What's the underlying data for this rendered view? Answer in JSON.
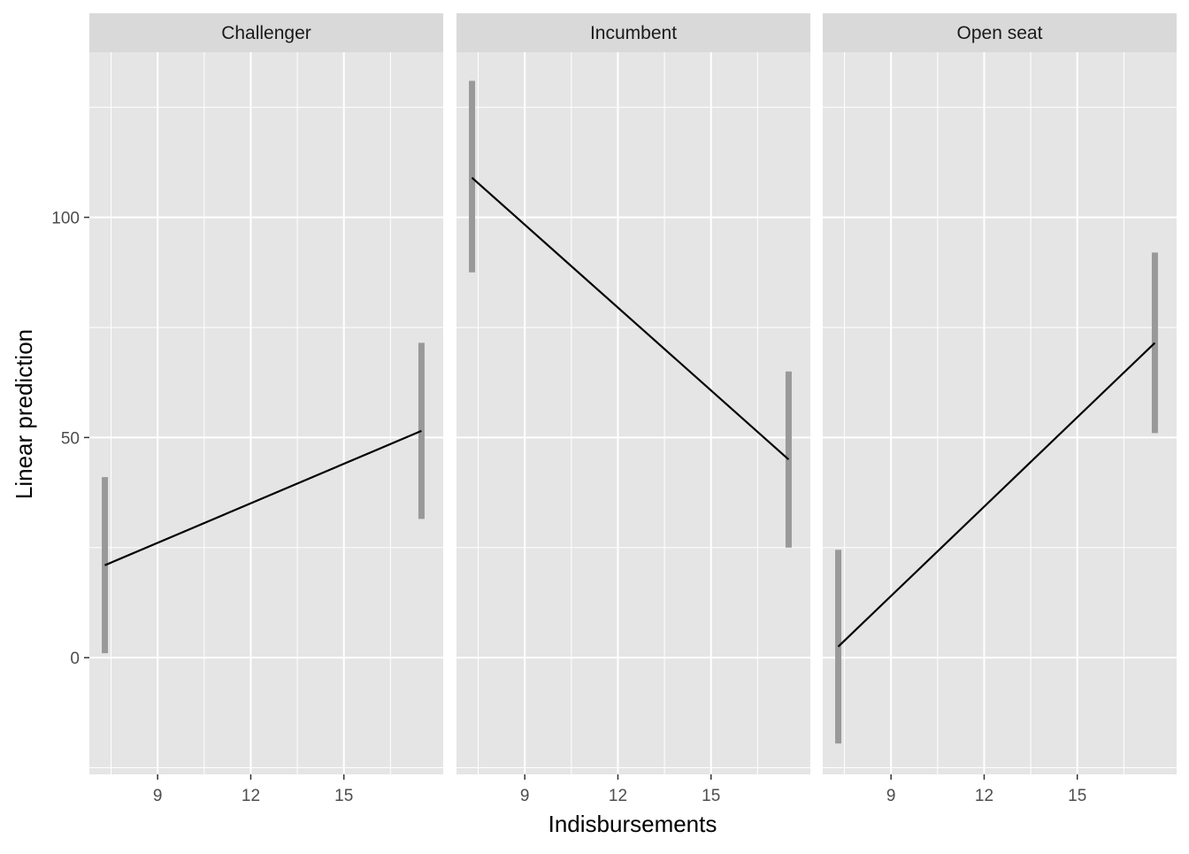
{
  "chart_data": {
    "type": "line",
    "facet_by": "panel",
    "xlabel": "Indisbursements",
    "ylabel": "Linear prediction",
    "xlim": [
      6.8,
      18.2
    ],
    "ylim": [
      -26.5,
      137.5
    ],
    "x_ticks": [
      9,
      12,
      15
    ],
    "y_ticks": [
      0,
      50,
      100
    ],
    "x_minor_ticks": [
      7.5,
      10.5,
      13.5,
      16.5
    ],
    "y_minor_ticks": [
      -25,
      25,
      75,
      125
    ],
    "grid": true,
    "panel_background": "#e5e5e5",
    "strip_background": "#d9d9d9",
    "gridline_color": "#ffffff",
    "line_color": "#000000",
    "errorbar_color": "#999999",
    "panels": [
      {
        "name": "Challenger",
        "points": [
          {
            "x": 7.3,
            "y": 21,
            "ymin": 1,
            "ymax": 41
          },
          {
            "x": 17.5,
            "y": 51.5,
            "ymin": 31.5,
            "ymax": 71.5
          }
        ]
      },
      {
        "name": "Incumbent",
        "points": [
          {
            "x": 7.3,
            "y": 109,
            "ymin": 87.5,
            "ymax": 131
          },
          {
            "x": 17.5,
            "y": 45,
            "ymin": 25,
            "ymax": 65
          }
        ]
      },
      {
        "name": "Open seat",
        "points": [
          {
            "x": 7.3,
            "y": 2.5,
            "ymin": -19.5,
            "ymax": 24.5
          },
          {
            "x": 17.5,
            "y": 71.5,
            "ymin": 51,
            "ymax": 92
          }
        ]
      }
    ]
  }
}
